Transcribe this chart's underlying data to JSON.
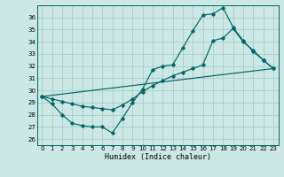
{
  "background_color": "#cce8e4",
  "grid_color": "#aacccc",
  "line_color": "#006666",
  "xlabel": "Humidex (Indice chaleur)",
  "xlim": [
    -0.5,
    23.5
  ],
  "ylim": [
    25.5,
    37.0
  ],
  "xticks": [
    0,
    1,
    2,
    3,
    4,
    5,
    6,
    7,
    8,
    9,
    10,
    11,
    12,
    13,
    14,
    15,
    16,
    17,
    18,
    19,
    20,
    21,
    22,
    23
  ],
  "yticks": [
    26,
    27,
    28,
    29,
    30,
    31,
    32,
    33,
    34,
    35,
    36
  ],
  "line1_x": [
    0,
    1,
    2,
    3,
    4,
    5,
    6,
    7,
    8,
    9,
    10,
    11,
    12,
    13,
    14,
    15,
    16,
    17,
    18,
    19,
    20,
    21,
    22,
    23
  ],
  "line1_y": [
    29.5,
    28.9,
    28.0,
    27.3,
    27.1,
    27.0,
    27.0,
    26.5,
    27.7,
    29.0,
    30.1,
    31.7,
    32.0,
    32.1,
    33.5,
    34.9,
    36.2,
    36.3,
    36.8,
    35.2,
    34.1,
    33.2,
    32.5,
    31.8
  ],
  "line2_x": [
    0,
    1,
    2,
    3,
    4,
    5,
    6,
    7,
    8,
    9,
    10,
    11,
    12,
    13,
    14,
    15,
    16,
    17,
    18,
    19,
    20,
    21,
    22,
    23
  ],
  "line2_y": [
    29.5,
    29.3,
    29.1,
    28.9,
    28.7,
    28.6,
    28.5,
    28.4,
    28.8,
    29.3,
    29.9,
    30.4,
    30.8,
    31.2,
    31.5,
    31.8,
    32.1,
    34.1,
    34.3,
    35.1,
    34.0,
    33.3,
    32.5,
    31.8
  ],
  "line3_x": [
    0,
    23
  ],
  "line3_y": [
    29.5,
    31.8
  ]
}
